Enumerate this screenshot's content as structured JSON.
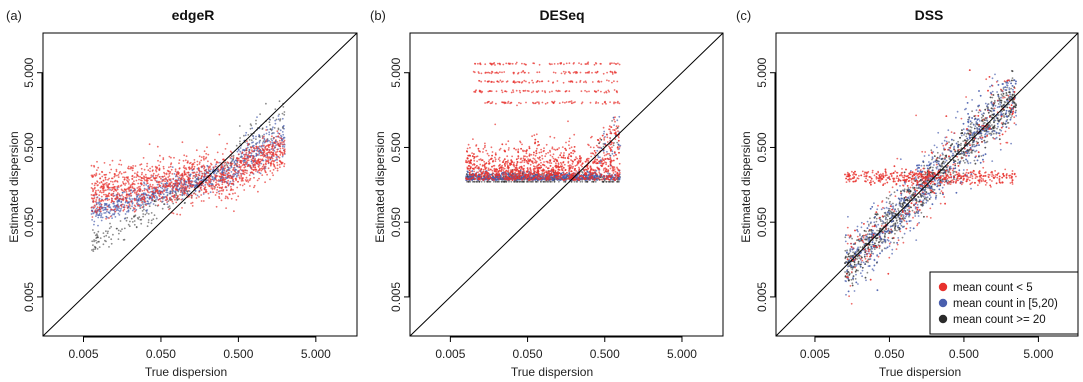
{
  "figure": {
    "x_axis_label": "True dispersion",
    "y_axis_label": "Estimated dispersion",
    "tick_labels": [
      "0.005",
      "0.050",
      "0.500",
      "5.000"
    ],
    "colors": {
      "low": "#e8322e",
      "mid": "#4a5fae",
      "high": "#2b2b2b",
      "line": "#000000"
    }
  },
  "chart_data": [
    {
      "type": "scatter",
      "tag": "(a)",
      "title": "edgeR",
      "xlabel": "True dispersion",
      "ylabel": "Estimated dispersion",
      "scale": "log10",
      "xlim": [
        0.0015,
        17
      ],
      "ylim": [
        0.0015,
        17
      ],
      "ticks": [
        0.005,
        0.05,
        0.5,
        5
      ],
      "reference_line": "y = x",
      "series": [
        {
          "name": "mean count < 5",
          "color": "#e8322e",
          "pattern": "estimates spread around 0.1-0.4 across true dispersion 0.005-1.5"
        },
        {
          "name": "mean count in [5,20)",
          "color": "#4a5fae",
          "pattern": "estimates near 0.15-0.3, rising toward truth above 0.5"
        },
        {
          "name": "mean count >= 20",
          "color": "#2b2b2b",
          "pattern": "follows identity line at high true dispersion"
        }
      ]
    },
    {
      "type": "scatter",
      "tag": "(b)",
      "title": "DESeq",
      "xlabel": "True dispersion",
      "ylabel": "Estimated dispersion",
      "scale": "log10",
      "xlim": [
        0.0015,
        17
      ],
      "ylim": [
        0.0015,
        17
      ],
      "ticks": [
        0.005,
        0.05,
        0.5,
        5
      ],
      "reference_line": "y = x",
      "series": [
        {
          "name": "mean count < 5",
          "color": "#e8322e",
          "pattern": "floor near 0.2 plus horizontal bands up to ~5"
        },
        {
          "name": "mean count in [5,20)",
          "color": "#4a5fae",
          "pattern": "dense floor near 0.2"
        },
        {
          "name": "mean count >= 20",
          "color": "#2b2b2b",
          "pattern": "floor line at ~0.2, rising along identity above 0.5"
        }
      ]
    },
    {
      "type": "scatter",
      "tag": "(c)",
      "title": "DSS",
      "xlabel": "True dispersion",
      "ylabel": "Estimated dispersion",
      "scale": "log10",
      "xlim": [
        0.0015,
        17
      ],
      "ylim": [
        0.0015,
        17
      ],
      "ticks": [
        0.005,
        0.05,
        0.5,
        5
      ],
      "reference_line": "y = x",
      "legend_position": "bottom-right",
      "series": [
        {
          "name": "mean count < 5",
          "color": "#e8322e",
          "pattern": "horizontal band at ~0.2 across true dispersion 0.01-3"
        },
        {
          "name": "mean count in [5,20)",
          "color": "#4a5fae",
          "pattern": "scattered along identity line"
        },
        {
          "name": "mean count >= 20",
          "color": "#2b2b2b",
          "pattern": "tightly along identity line, 0.02-2"
        }
      ]
    }
  ]
}
